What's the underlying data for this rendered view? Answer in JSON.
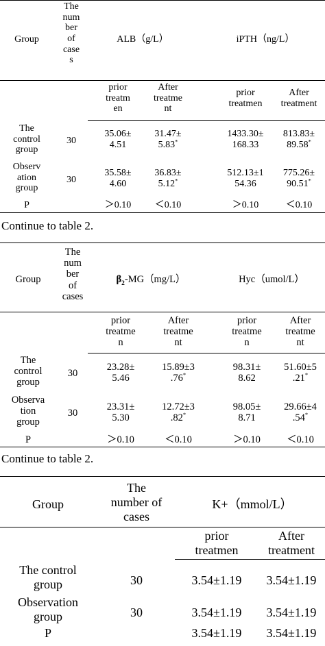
{
  "table1": {
    "header": {
      "group": "Group",
      "cases": "The\nnum\nber\nof\ncase\ns",
      "alb": "ALB（g/L）",
      "ipth": "iPTH（ng/L）"
    },
    "subheader": {
      "alb_prior": "prior\ntreatm\nen",
      "alb_after": "After\ntreatme\nnt",
      "ipth_prior": "prior\ntreatmen",
      "ipth_after": "After\ntreatment"
    },
    "rows": [
      {
        "group": "The\ncontrol\ngroup",
        "cases": "30",
        "alb_prior": "35.06±\n4.51",
        "alb_after_l1": "31.47±",
        "alb_after_l2": "5.83",
        "ipth_prior": "1433.30±\n168.33",
        "ipth_after_l1": "813.83±",
        "ipth_after_l2": "89.58"
      },
      {
        "group": "Observ\nation\ngroup",
        "cases": "30",
        "alb_prior": "35.58±\n4.60",
        "alb_after_l1": "36.83±",
        "alb_after_l2": "5.12",
        "ipth_prior": "512.13±1\n54.36",
        "ipth_after_l1": "775.26±",
        "ipth_after_l2": "90.51"
      }
    ],
    "p_row": {
      "label": "P",
      "alb_prior": "＞0.10",
      "alb_after": "＜0.10",
      "ipth_prior": "＞0.10",
      "ipth_after": "＜0.10"
    },
    "caption": "Continue to table 2."
  },
  "table2": {
    "header": {
      "group": "Group",
      "cases": "The\nnum\nber\nof\ncases",
      "b2mg_sub": "2",
      "b2mg_unit": "-MG（mg/L）",
      "hyc": "Hyc（umol/L）"
    },
    "subheader": {
      "b2_prior": "prior\ntreatme\nn",
      "b2_after": "After\ntreatme\nnt",
      "hyc_prior": "prior\ntreatme\nn",
      "hyc_after": "After\ntreatme\nnt"
    },
    "rows": [
      {
        "group": "The\ncontrol\ngroup",
        "cases": "30",
        "b2_prior": "23.28±\n5.46",
        "b2_after_l1": "15.89±3",
        "b2_after_l2": ".76",
        "hyc_prior": "98.31±\n8.62",
        "hyc_after_l1": "51.60±5",
        "hyc_after_l2": ".21"
      },
      {
        "group": "Observa\ntion\ngroup",
        "cases": "30",
        "b2_prior": "23.31±\n5.30",
        "b2_after_l1": "12.72±3",
        "b2_after_l2": ".82",
        "hyc_prior": "98.05±\n8.71",
        "hyc_after_l1": "29.66±4",
        "hyc_after_l2": ".54"
      }
    ],
    "p_row": {
      "label": "P",
      "b2_prior": "＞0.10",
      "b2_after": "＜0.10",
      "hyc_prior": "＞0.10",
      "hyc_after": "＜0.10"
    },
    "caption": "Continue to table 2."
  },
  "table3": {
    "header": {
      "group": "Group",
      "cases": "The\nnumber of\ncases",
      "k": "K+（mmol/L）"
    },
    "subheader": {
      "k_prior": "prior\ntreatmen",
      "k_after": "After\ntreatment"
    },
    "rows": [
      {
        "group": "The control\ngroup",
        "cases": "30",
        "k_prior": "3.54±1.19",
        "k_after": "3.54±1.19"
      },
      {
        "group": "Observation\ngroup",
        "cases": "30",
        "k_prior": "3.54±1.19",
        "k_after": "3.54±1.19"
      }
    ],
    "p_row": {
      "label": "P",
      "k_prior": "3.54±1.19",
      "k_after": "3.54±1.19"
    }
  },
  "footnote_mark": "*"
}
